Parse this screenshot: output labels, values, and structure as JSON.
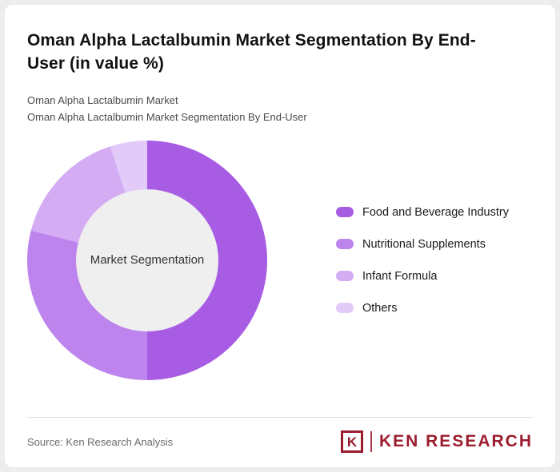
{
  "card": {
    "title": "Oman Alpha Lactalbumin Market Segmentation By End-User (in value %)",
    "subtitle_line1": "Oman Alpha Lactalbumin Market",
    "subtitle_line2": "Oman Alpha Lactalbumin Market Segmentation By End-User"
  },
  "chart_data": {
    "type": "pie",
    "donut": true,
    "title": "Oman Alpha Lactalbumin Market Segmentation By End-User (in value %)",
    "center_label": "Market Segmentation",
    "units": "value %",
    "legend_position": "right",
    "categories": [
      "Food and Beverage Industry",
      "Nutritional Supplements",
      "Infant Formula",
      "Others"
    ],
    "values": [
      50,
      29,
      16,
      5
    ],
    "colors": [
      "#A85CE4",
      "#BC84EC",
      "#D3ACF4",
      "#E2CBF8"
    ]
  },
  "footer": {
    "source": "Source: Ken Research Analysis",
    "brand": {
      "icon_letter": "K",
      "name": "KEN RESEARCH",
      "color": "#9B1C2E"
    }
  }
}
